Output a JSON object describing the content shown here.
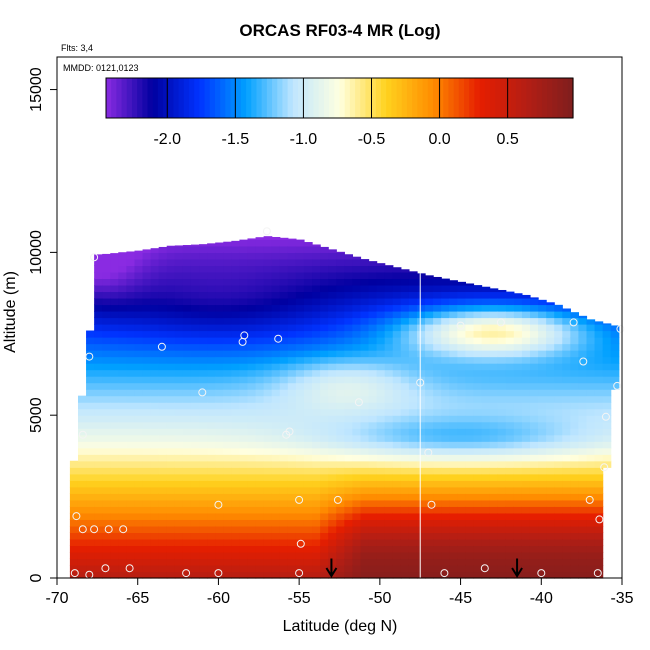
{
  "chart_data": {
    "type": "heatmap",
    "title": "ORCAS RF03-4 MR (Log)",
    "flights_label": "Flts: 3,4",
    "dates_label": "MMDD: 0121,0123",
    "xlabel": "Latitude (deg N)",
    "ylabel": "Altitude (m)",
    "xlim": [
      -70,
      -35
    ],
    "ylim": [
      0,
      16000
    ],
    "xticks": [
      -70,
      -65,
      -60,
      -55,
      -50,
      -45,
      -40,
      -35
    ],
    "yticks": [
      0,
      5000,
      10000,
      15000
    ],
    "colorbar": {
      "min": -2.45,
      "max": 0.98,
      "ticks": [
        -2.0,
        -1.5,
        -1.0,
        -0.5,
        0.0,
        0.5
      ],
      "tick_labels": [
        "-2.0",
        "-1.5",
        "-1.0",
        "-0.5",
        "0.0",
        "0.5"
      ],
      "colors": [
        "#8a2be2",
        "#0000a0",
        "#0033ff",
        "#00a0ff",
        "#bfe6ff",
        "#ffffe0",
        "#ffd21e",
        "#ff8c00",
        "#e61e00",
        "#b41e14",
        "#7f1e1e"
      ]
    },
    "field_description": "log10 mixing ratio curtain: high values near surface, decreasing with altitude; moist tongue near 7500 m north of -47",
    "field_grid": {
      "lat": [
        -69,
        -67,
        -65,
        -63,
        -61,
        -59,
        -57,
        -55,
        -53,
        -51,
        -49,
        -47,
        -45,
        -43,
        -41,
        -39,
        -37,
        -35
      ],
      "alt": [
        0,
        1000,
        2000,
        3000,
        4000,
        5000,
        6000,
        7000,
        8000,
        9000,
        10000
      ],
      "top_alt": [
        9900,
        9950,
        10050,
        10200,
        10250,
        10350,
        10500,
        10400,
        10100,
        9800,
        9550,
        9300,
        9100,
        8900,
        8700,
        8400,
        7950,
        7700
      ]
    },
    "sample_points": [
      {
        "lat": -68.9,
        "alt": 150
      },
      {
        "lat": -68,
        "alt": 100
      },
      {
        "lat": -67,
        "alt": 300
      },
      {
        "lat": -65.5,
        "alt": 300
      },
      {
        "lat": -62,
        "alt": 150
      },
      {
        "lat": -60,
        "alt": 150
      },
      {
        "lat": -55,
        "alt": 150
      },
      {
        "lat": -46,
        "alt": 150
      },
      {
        "lat": -43.5,
        "alt": 300
      },
      {
        "lat": -40,
        "alt": 150
      },
      {
        "lat": -36.5,
        "alt": 150
      },
      {
        "lat": -68.8,
        "alt": 1900
      },
      {
        "lat": -68.4,
        "alt": 1500
      },
      {
        "lat": -67.7,
        "alt": 1500
      },
      {
        "lat": -66.8,
        "alt": 1500
      },
      {
        "lat": -65.9,
        "alt": 1500
      },
      {
        "lat": -60,
        "alt": 2250
      },
      {
        "lat": -55,
        "alt": 2400
      },
      {
        "lat": -54.9,
        "alt": 1050
      },
      {
        "lat": -52.6,
        "alt": 2400
      },
      {
        "lat": -46.8,
        "alt": 2250
      },
      {
        "lat": -36.4,
        "alt": 1800
      },
      {
        "lat": -37,
        "alt": 2400
      },
      {
        "lat": -36.1,
        "alt": 3400
      },
      {
        "lat": -68.4,
        "alt": 4400
      },
      {
        "lat": -55.8,
        "alt": 4400
      },
      {
        "lat": -55.6,
        "alt": 4500
      },
      {
        "lat": -47,
        "alt": 3850
      },
      {
        "lat": -51.3,
        "alt": 5400
      },
      {
        "lat": -61,
        "alt": 5700
      },
      {
        "lat": -36,
        "alt": 4950
      },
      {
        "lat": -35.3,
        "alt": 5900
      },
      {
        "lat": -68,
        "alt": 6800
      },
      {
        "lat": -63.5,
        "alt": 7100
      },
      {
        "lat": -58.4,
        "alt": 7450
      },
      {
        "lat": -58.5,
        "alt": 7250
      },
      {
        "lat": -56.3,
        "alt": 7350
      },
      {
        "lat": -47.5,
        "alt": 6000
      },
      {
        "lat": -45,
        "alt": 7750
      },
      {
        "lat": -42.5,
        "alt": 7850
      },
      {
        "lat": -38,
        "alt": 7850
      },
      {
        "lat": -37.4,
        "alt": 6650
      },
      {
        "lat": -35.1,
        "alt": 7650
      },
      {
        "lat": -67.7,
        "alt": 9850
      },
      {
        "lat": -57,
        "alt": 10650
      }
    ],
    "arrows": [
      {
        "lat": -53,
        "label": "down-arrow"
      },
      {
        "lat": -41.5,
        "label": "down-arrow"
      }
    ],
    "vertical_line_lat": -47.5
  }
}
